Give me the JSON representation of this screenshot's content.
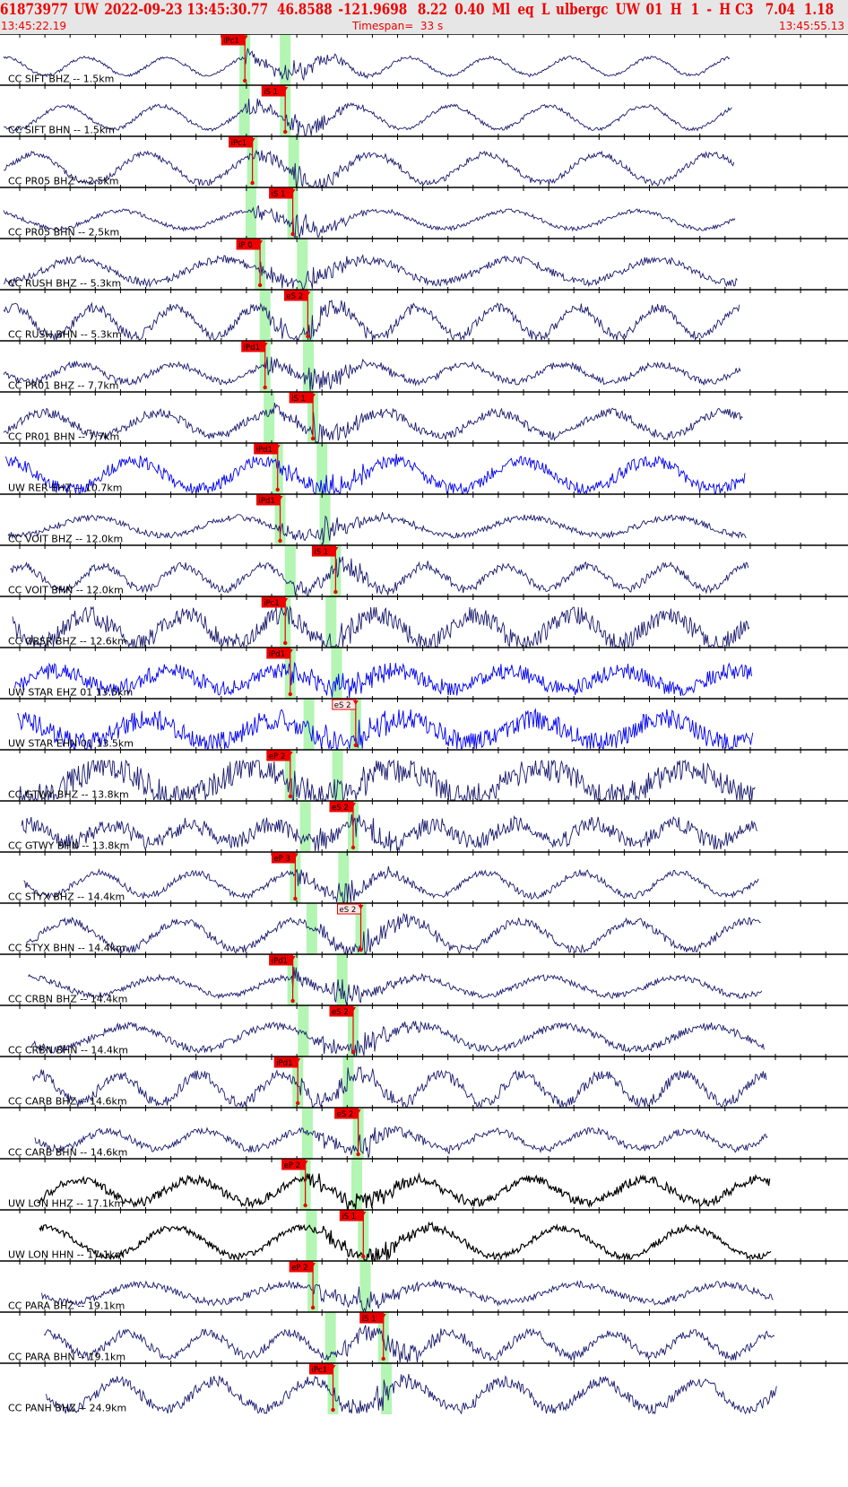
{
  "header": {
    "title_fields": [
      "61873977",
      "UW",
      "2022-09-23 13:45:30.77",
      "46.8588",
      "-121.9698",
      "8.22",
      "0.40",
      "Ml",
      "eq",
      "L",
      "ulbergc",
      "UW",
      "01",
      "H",
      "1",
      "-",
      "H",
      "C3",
      "7.04",
      "1.18"
    ],
    "start_time": "13:45:22.19",
    "timespan": "Timespan=  33 s",
    "end_time": "13:45:55.13"
  },
  "colors": {
    "pick_red": "#ee0000",
    "window_green": "#b3f5b3",
    "trace_navy": "#1a1a6e",
    "trace_blue": "#0000ee",
    "trace_black": "#000000",
    "label_text": "#000000"
  },
  "traces": [
    {
      "label": "CC SIFT BHZ -- 1.5km",
      "pick": "iPc1",
      "pick_t": 9.9,
      "kind": "P",
      "col": "navy",
      "snr": 0.15
    },
    {
      "label": "CC SIFT BHN -- 1.5km",
      "pick": "iS 1",
      "pick_t": 11.5,
      "kind": "S",
      "col": "navy",
      "snr": 0.15
    },
    {
      "label": "CC PR05 BHZ -- 2.5km",
      "pick": "iPc1",
      "pick_t": 10.2,
      "kind": "P",
      "col": "navy",
      "snr": 0.2
    },
    {
      "label": "CC PR05 BHN -- 2.5km",
      "pick": "iS 1",
      "pick_t": 11.8,
      "kind": "S",
      "col": "navy",
      "snr": 0.2
    },
    {
      "label": "CC RUSH BHZ -- 5.3km",
      "pick": "iP 0",
      "pick_t": 10.5,
      "kind": "P",
      "col": "navy",
      "snr": 0.3
    },
    {
      "label": "CC RUSH BHN -- 5.3km",
      "pick": "eS 2",
      "pick_t": 12.4,
      "kind": "S",
      "col": "navy",
      "snr": 0.3
    },
    {
      "label": "CC PR01 BHZ -- 7.7km",
      "pick": "iPd1",
      "pick_t": 10.7,
      "kind": "P",
      "col": "navy",
      "snr": 0.35
    },
    {
      "label": "CC PR01 BHN -- 7.7km",
      "pick": "iS 1",
      "pick_t": 12.6,
      "kind": "S",
      "col": "navy",
      "snr": 0.35
    },
    {
      "label": "UW RER EHZ -- 10.7km",
      "pick": "iPd1",
      "pick_t": 11.2,
      "kind": "P",
      "col": "blue",
      "snr": 0.4
    },
    {
      "label": "CC VOIT BHZ -- 12.0km",
      "pick": "iPd1",
      "pick_t": 11.3,
      "kind": "P",
      "col": "navy",
      "snr": 0.3
    },
    {
      "label": "CC VOIT BHN -- 12.0km",
      "pick": "iS 1",
      "pick_t": 13.5,
      "kind": "S",
      "col": "navy",
      "snr": 0.3
    },
    {
      "label": "CC OBSR BHZ -- 12.6km",
      "pick": "iPc1",
      "pick_t": 11.5,
      "kind": "P",
      "col": "navy",
      "snr": 0.6
    },
    {
      "label": "UW STAR EHZ 01 13.5km",
      "pick": "iPd1",
      "pick_t": 11.7,
      "kind": "P",
      "col": "blue",
      "snr": 0.8
    },
    {
      "label": "UW STAR EHN 01 13.5km",
      "pick": "eS 2",
      "pick_t": 14.3,
      "kind": "S",
      "col": "blue",
      "snr": 0.8,
      "outline": true
    },
    {
      "label": "CC GTWY BHZ -- 13.8km",
      "pick": "eP 2",
      "pick_t": 11.7,
      "kind": "P",
      "col": "navy",
      "snr": 0.8
    },
    {
      "label": "CC GTWY BHN -- 13.8km",
      "pick": "eS 2",
      "pick_t": 14.2,
      "kind": "S",
      "col": "navy",
      "snr": 0.8
    },
    {
      "label": "CC STYX BHZ -- 14.4km",
      "pick": "eP 3",
      "pick_t": 11.9,
      "kind": "P",
      "col": "navy",
      "snr": 0.25
    },
    {
      "label": "CC STYX BHN -- 14.4km",
      "pick": "eS 2",
      "pick_t": 14.5,
      "kind": "S",
      "col": "navy",
      "snr": 0.25,
      "outline": true
    },
    {
      "label": "CC CRBN BHZ -- 14.4km",
      "pick": "iPd1",
      "pick_t": 11.8,
      "kind": "P",
      "col": "navy",
      "snr": 0.3
    },
    {
      "label": "CC CRBN BHN -- 14.4km",
      "pick": "eS 2",
      "pick_t": 14.2,
      "kind": "S",
      "col": "navy",
      "snr": 0.3
    },
    {
      "label": "CC CARB BHZ -- 14.6km",
      "pick": "iPd1",
      "pick_t": 12.0,
      "kind": "P",
      "col": "navy",
      "snr": 0.35
    },
    {
      "label": "CC CARB BHN -- 14.6km",
      "pick": "eS 2",
      "pick_t": 14.4,
      "kind": "S",
      "col": "navy",
      "snr": 0.35
    },
    {
      "label": "UW LON HHZ -- 17.1km",
      "pick": "eP 2",
      "pick_t": 12.3,
      "kind": "P",
      "col": "black",
      "snr": 0.35
    },
    {
      "label": "UW LON HHN -- 17.1km",
      "pick": "iS 1",
      "pick_t": 14.6,
      "kind": "S",
      "col": "black",
      "snr": 0.2
    },
    {
      "label": "CC PARA BHZ -- 19.1km",
      "pick": "eP 2",
      "pick_t": 12.6,
      "kind": "P",
      "col": "navy",
      "snr": 0.35
    },
    {
      "label": "CC PARA BHN -- 19.1km",
      "pick": "iS 1",
      "pick_t": 15.4,
      "kind": "S",
      "col": "navy",
      "snr": 0.35
    },
    {
      "label": "CC PANH BHZ -- 24.9km",
      "pick": "iPc1",
      "pick_t": 13.4,
      "kind": "P",
      "col": "navy",
      "snr": 0.35
    }
  ]
}
